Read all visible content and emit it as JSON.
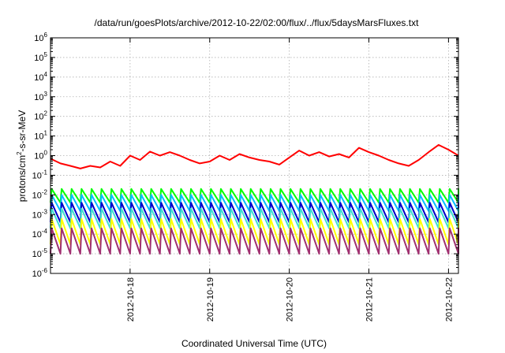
{
  "chart_data": {
    "type": "line",
    "title": "/data/run/goesPlots/archive/2012-10-22/02:00/flux/../flux/5daysMarsFluxes.txt",
    "xlabel": "Coordinated Universal Time (UTC)",
    "ylabel": "protons/cm²-s-sr-MeV",
    "ylabel_parts": {
      "pre": "protons/cm",
      "sup": "2",
      "post": "-s-sr-MeV"
    },
    "y_scale": "log",
    "y_tick_base": "10",
    "y_tick_exponents": [
      "-6",
      "-5",
      "-4",
      "-3",
      "-2",
      "-1",
      "0",
      "1",
      "2",
      "3",
      "4",
      "5",
      "6"
    ],
    "x_ticks": [
      "2012-10-18",
      "2012-10-19",
      "2012-10-20",
      "2012-10-21",
      "2012-10-22"
    ],
    "xlim": [
      "2012-10-17 00:00",
      "2012-10-22 03:00"
    ],
    "ylim": [
      1e-06,
      1000000.0
    ],
    "grid": true,
    "legend": "none",
    "sawtooth_period_hours": 3,
    "series": [
      {
        "color": "#ff0000",
        "style": "smooth-sawtooth",
        "points": [
          [
            "2012-10-17 00:00",
            0.7
          ],
          [
            "2012-10-17 03:00",
            0.4
          ],
          [
            "2012-10-17 06:00",
            0.3
          ],
          [
            "2012-10-17 09:00",
            0.22
          ],
          [
            "2012-10-17 12:00",
            0.3
          ],
          [
            "2012-10-17 15:00",
            0.25
          ],
          [
            "2012-10-17 18:00",
            0.5
          ],
          [
            "2012-10-17 21:00",
            0.3
          ],
          [
            "2012-10-18 00:00",
            1.0
          ],
          [
            "2012-10-18 03:00",
            0.6
          ],
          [
            "2012-10-18 06:00",
            1.6
          ],
          [
            "2012-10-18 09:00",
            1.0
          ],
          [
            "2012-10-18 12:00",
            1.5
          ],
          [
            "2012-10-18 15:00",
            1.0
          ],
          [
            "2012-10-18 18:00",
            0.6
          ],
          [
            "2012-10-18 21:00",
            0.4
          ],
          [
            "2012-10-19 00:00",
            0.5
          ],
          [
            "2012-10-19 03:00",
            1.0
          ],
          [
            "2012-10-19 06:00",
            0.6
          ],
          [
            "2012-10-19 09:00",
            1.2
          ],
          [
            "2012-10-19 12:00",
            0.8
          ],
          [
            "2012-10-19 15:00",
            0.6
          ],
          [
            "2012-10-19 18:00",
            0.5
          ],
          [
            "2012-10-19 21:00",
            0.35
          ],
          [
            "2012-10-20 00:00",
            0.8
          ],
          [
            "2012-10-20 03:00",
            1.8
          ],
          [
            "2012-10-20 06:00",
            1.0
          ],
          [
            "2012-10-20 09:00",
            1.5
          ],
          [
            "2012-10-20 12:00",
            0.9
          ],
          [
            "2012-10-20 15:00",
            1.2
          ],
          [
            "2012-10-20 18:00",
            0.8
          ],
          [
            "2012-10-20 21:00",
            2.5
          ],
          [
            "2012-10-21 00:00",
            1.5
          ],
          [
            "2012-10-21 03:00",
            1.0
          ],
          [
            "2012-10-21 06:00",
            0.6
          ],
          [
            "2012-10-21 09:00",
            0.4
          ],
          [
            "2012-10-21 12:00",
            0.3
          ],
          [
            "2012-10-21 15:00",
            0.6
          ],
          [
            "2012-10-21 18:00",
            1.5
          ],
          [
            "2012-10-21 21:00",
            3.5
          ],
          [
            "2012-10-22 00:00",
            2.0
          ],
          [
            "2012-10-22 03:00",
            1.0
          ]
        ]
      },
      {
        "color": "#00ff00",
        "style": "sawtooth",
        "peak": 0.02,
        "trough": 0.004
      },
      {
        "color": "#00bfff",
        "style": "sawtooth",
        "peak": 0.01,
        "trough": 0.0015
      },
      {
        "color": "#0000cd",
        "style": "sawtooth",
        "peak": 0.004,
        "trough": 0.0004
      },
      {
        "color": "#40e0d0",
        "style": "sawtooth",
        "peak": 0.002,
        "trough": 0.0002
      },
      {
        "color": "#ffff00",
        "style": "sawtooth",
        "peak": 0.0006,
        "trough": 3e-05
      },
      {
        "color": "#a03070",
        "style": "sawtooth",
        "peak": 0.0002,
        "trough": 1e-05
      }
    ]
  }
}
